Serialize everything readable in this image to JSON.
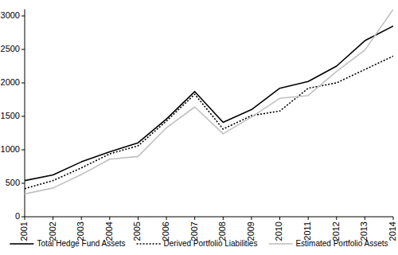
{
  "chart_data": {
    "type": "line",
    "x": [
      2001,
      2002,
      2003,
      2004,
      2005,
      2006,
      2007,
      2008,
      2009,
      2010,
      2011,
      2012,
      2013,
      2014
    ],
    "xlim": [
      2001,
      2014
    ],
    "xticks": [
      2001,
      2002,
      2003,
      2004,
      2005,
      2006,
      2007,
      2008,
      2009,
      2010,
      2011,
      2012,
      2013,
      2014
    ],
    "ylim": [
      0,
      3100
    ],
    "yticks": [
      0,
      500,
      1000,
      1500,
      2000,
      2500,
      3000
    ],
    "grid": false,
    "legend": "bottom",
    "series": [
      {
        "name": "Total Hedge Fund Assets",
        "color": "#000000",
        "line_style": "solid",
        "values": [
          540,
          625,
          820,
          970,
          1105,
          1460,
          1870,
          1410,
          1600,
          1920,
          2020,
          2250,
          2630,
          2850
        ]
      },
      {
        "name": "Derived Portfolio Liabilities",
        "color": "#000000",
        "line_style": "dotted",
        "values": [
          420,
          540,
          730,
          940,
          1060,
          1430,
          1830,
          1310,
          1510,
          1580,
          1920,
          2000,
          2200,
          2400
        ]
      },
      {
        "name": "Estimated Portfolio Assets",
        "color": "#c0c0c0",
        "line_style": "solid",
        "values": [
          340,
          430,
          630,
          860,
          900,
          1330,
          1640,
          1240,
          1490,
          1770,
          1810,
          2170,
          2490,
          3100
        ]
      }
    ]
  }
}
